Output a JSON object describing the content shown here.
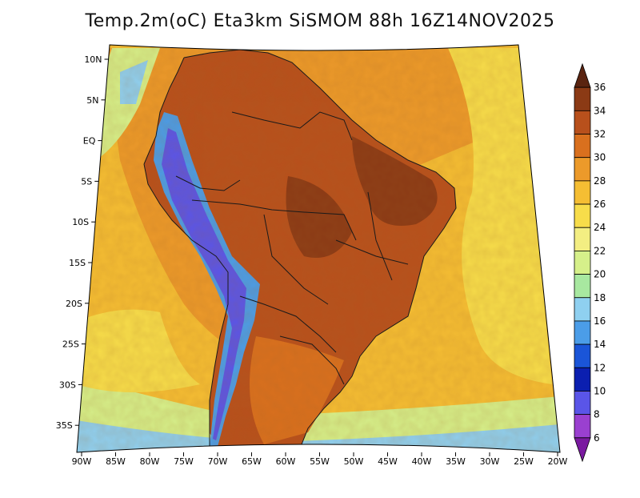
{
  "title": "Temp.2m(oC) Eta3km SiSMOM 88h 16Z14NOV2025",
  "latitude_labels": [
    "10N",
    "5N",
    "EQ",
    "5S",
    "10S",
    "15S",
    "20S",
    "25S",
    "30S",
    "35S"
  ],
  "longitude_labels": [
    "90W",
    "85W",
    "80W",
    "75W",
    "70W",
    "65W",
    "60W",
    "55W",
    "50W",
    "45W",
    "40W",
    "35W",
    "30W",
    "25W",
    "20W"
  ],
  "colorbar": {
    "labels": [
      "36",
      "34",
      "32",
      "30",
      "28",
      "26",
      "24",
      "22",
      "20",
      "18",
      "16",
      "14",
      "12",
      "10",
      "8",
      "6"
    ],
    "colors": [
      "#5a2410",
      "#8b3a15",
      "#b8501c",
      "#d9701e",
      "#ec9a2a",
      "#f5be33",
      "#f7dd4a",
      "#f3ee82",
      "#d6f08a",
      "#a8e8a0",
      "#8fd0f0",
      "#4b9de8",
      "#1a55d8",
      "#0b1fb0",
      "#5a55e8",
      "#9a40d0",
      "#7a1aa0"
    ],
    "units": "oC"
  },
  "colors": {
    "ocean_warm": "#f5be33",
    "ocean_hot": "#ec9a2a",
    "ocean_mild": "#f7dd4a",
    "ocean_cool": "#d6f08a",
    "ocean_cold": "#8fd0f0",
    "land_hot": "#b8501c",
    "land_very_hot": "#8b3a15",
    "land_warm": "#d9701e",
    "andes": "#4b9de8",
    "andes_peaks": "#5a55e8"
  }
}
